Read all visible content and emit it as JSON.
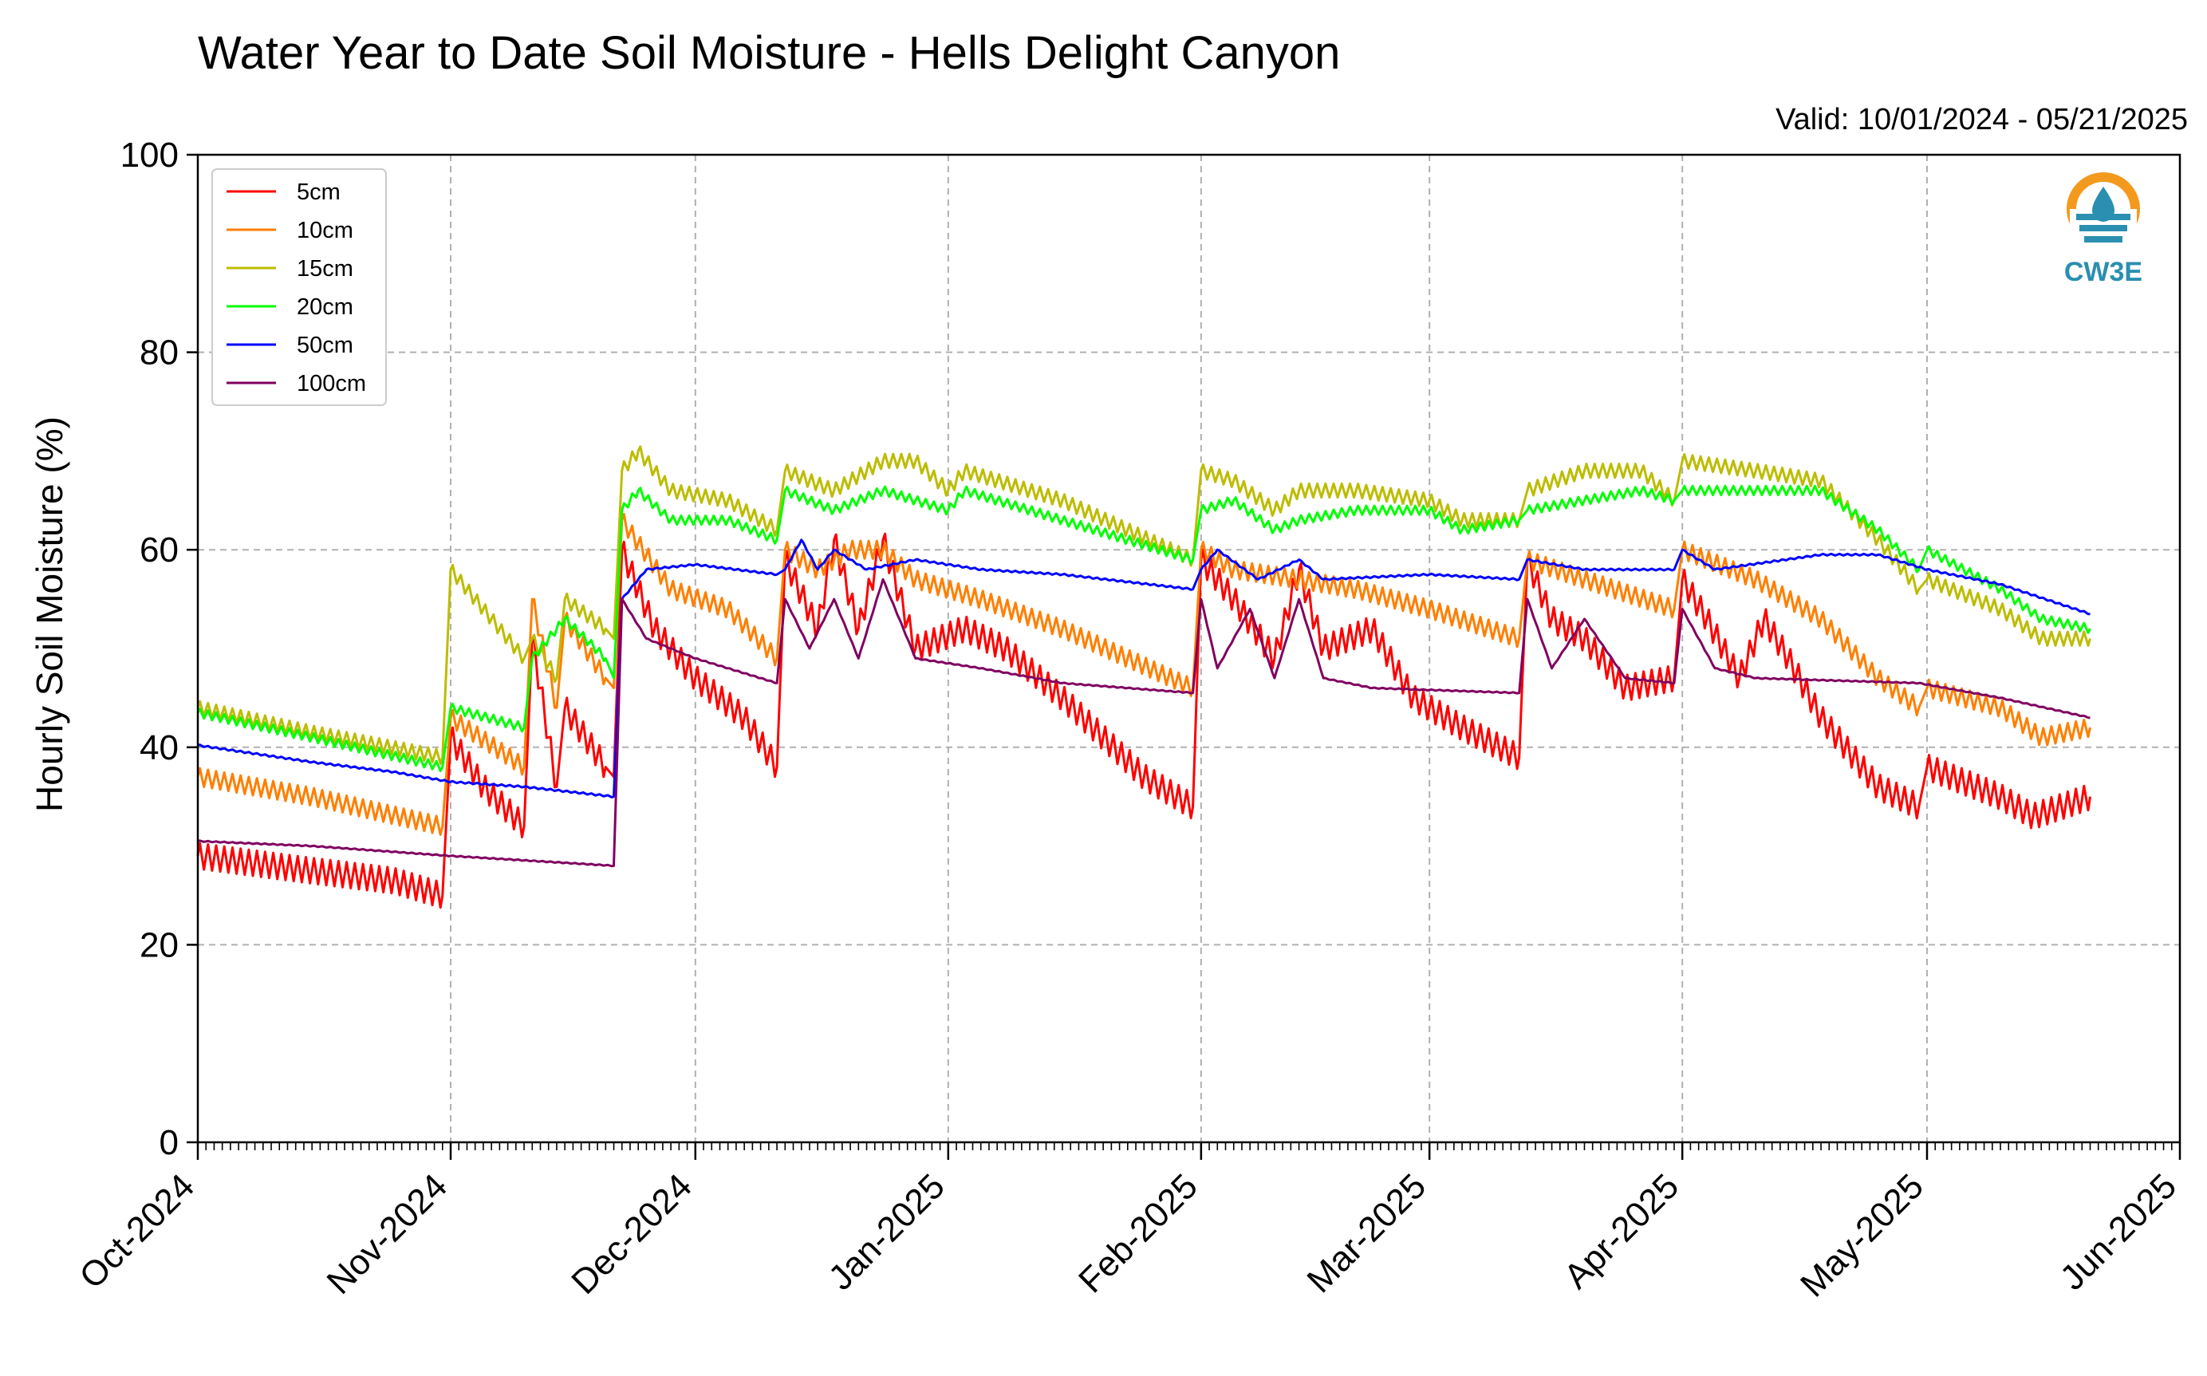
{
  "title": "Water Year to Date Soil Moisture - Hells Delight Canyon",
  "valid": "Valid: 10/01/2024 - 05/21/2025",
  "logo": {
    "text": "CW3E",
    "icon": "cw3e-drop-logo",
    "colors": {
      "sun": "#f39a1e",
      "water": "#2a8fb0"
    }
  },
  "chart_data": {
    "type": "line",
    "title": "Water Year to Date Soil Moisture - Hells Delight Canyon",
    "xlabel": "",
    "ylabel": "Hourly Soil Moisture (%)",
    "ylim": [
      0,
      100
    ],
    "yticks": [
      0,
      20,
      40,
      60,
      80,
      100
    ],
    "xlim": [
      "2024-10-01",
      "2025-06-01"
    ],
    "xticks": [
      {
        "date": "2024-10-01",
        "label": "Oct-2024"
      },
      {
        "date": "2024-11-01",
        "label": "Nov-2024"
      },
      {
        "date": "2024-12-01",
        "label": "Dec-2024"
      },
      {
        "date": "2025-01-01",
        "label": "Jan-2025"
      },
      {
        "date": "2025-02-01",
        "label": "Feb-2025"
      },
      {
        "date": "2025-03-01",
        "label": "Mar-2025"
      },
      {
        "date": "2025-04-01",
        "label": "Apr-2025"
      },
      {
        "date": "2025-05-01",
        "label": "May-2025"
      },
      {
        "date": "2025-06-01",
        "label": "Jun-2025"
      }
    ],
    "grid": true,
    "legend_position": "top-left",
    "series": [
      {
        "name": "5cm",
        "color": "#ff0000",
        "points": [
          [
            "2024-10-01",
            29
          ],
          [
            "2024-10-15",
            27.5
          ],
          [
            "2024-10-25",
            26.5
          ],
          [
            "2024-10-31",
            25
          ],
          [
            "2024-11-01",
            41
          ],
          [
            "2024-11-05",
            36
          ],
          [
            "2024-11-10",
            32
          ],
          [
            "2024-11-11",
            51
          ],
          [
            "2024-11-14",
            36
          ],
          [
            "2024-11-15",
            44
          ],
          [
            "2024-11-20",
            38
          ],
          [
            "2024-11-21",
            37
          ],
          [
            "2024-11-22",
            60
          ],
          [
            "2024-11-26",
            52
          ],
          [
            "2024-12-01",
            47
          ],
          [
            "2024-12-07",
            43
          ],
          [
            "2024-12-11",
            38
          ],
          [
            "2024-12-12",
            59
          ],
          [
            "2024-12-16",
            52
          ],
          [
            "2024-12-18",
            61
          ],
          [
            "2024-12-21",
            52
          ],
          [
            "2024-12-24",
            61
          ],
          [
            "2024-12-28",
            50
          ],
          [
            "2025-01-03",
            52
          ],
          [
            "2025-01-08",
            50
          ],
          [
            "2025-01-15",
            45
          ],
          [
            "2025-01-25",
            37
          ],
          [
            "2025-01-31",
            34
          ],
          [
            "2025-02-01",
            59
          ],
          [
            "2025-02-05",
            55
          ],
          [
            "2025-02-10",
            49
          ],
          [
            "2025-02-13",
            58
          ],
          [
            "2025-02-16",
            50
          ],
          [
            "2025-02-22",
            52
          ],
          [
            "2025-02-27",
            45
          ],
          [
            "2025-03-05",
            42
          ],
          [
            "2025-03-12",
            39
          ],
          [
            "2025-03-13",
            59
          ],
          [
            "2025-03-16",
            53
          ],
          [
            "2025-03-20",
            51
          ],
          [
            "2025-03-25",
            46
          ],
          [
            "2025-03-31",
            47
          ],
          [
            "2025-04-01",
            57
          ],
          [
            "2025-04-04",
            53
          ],
          [
            "2025-04-08",
            47
          ],
          [
            "2025-04-11",
            53
          ],
          [
            "2025-04-14",
            49
          ],
          [
            "2025-04-18",
            43
          ],
          [
            "2025-04-25",
            36
          ],
          [
            "2025-04-30",
            34
          ],
          [
            "2025-05-01",
            38
          ],
          [
            "2025-05-10",
            35
          ],
          [
            "2025-05-14",
            33
          ],
          [
            "2025-05-21",
            35
          ]
        ]
      },
      {
        "name": "10cm",
        "color": "#ff7f00",
        "points": [
          [
            "2024-10-01",
            37
          ],
          [
            "2024-10-15",
            35
          ],
          [
            "2024-10-31",
            32
          ],
          [
            "2024-11-01",
            43
          ],
          [
            "2024-11-10",
            38
          ],
          [
            "2024-11-11",
            55
          ],
          [
            "2024-11-14",
            44
          ],
          [
            "2024-11-15",
            53
          ],
          [
            "2024-11-20",
            47
          ],
          [
            "2024-11-21",
            46
          ],
          [
            "2024-11-22",
            63
          ],
          [
            "2024-11-28",
            56
          ],
          [
            "2024-12-05",
            54
          ],
          [
            "2024-12-11",
            49
          ],
          [
            "2024-12-12",
            60
          ],
          [
            "2024-12-16",
            58
          ],
          [
            "2024-12-20",
            60
          ],
          [
            "2024-12-24",
            60
          ],
          [
            "2024-12-28",
            57
          ],
          [
            "2025-01-05",
            55
          ],
          [
            "2025-01-15",
            52
          ],
          [
            "2025-01-31",
            46
          ],
          [
            "2025-02-01",
            60
          ],
          [
            "2025-02-05",
            58
          ],
          [
            "2025-02-13",
            57
          ],
          [
            "2025-02-20",
            56
          ],
          [
            "2025-03-01",
            54
          ],
          [
            "2025-03-12",
            51
          ],
          [
            "2025-03-13",
            59
          ],
          [
            "2025-03-20",
            57
          ],
          [
            "2025-03-31",
            54
          ],
          [
            "2025-04-01",
            60
          ],
          [
            "2025-04-10",
            57
          ],
          [
            "2025-04-18",
            53
          ],
          [
            "2025-04-25",
            47
          ],
          [
            "2025-04-30",
            44
          ],
          [
            "2025-05-01",
            46
          ],
          [
            "2025-05-10",
            44
          ],
          [
            "2025-05-15",
            41
          ],
          [
            "2025-05-21",
            42
          ]
        ]
      },
      {
        "name": "15cm",
        "color": "#bcbc00",
        "points": [
          [
            "2024-10-01",
            44
          ],
          [
            "2024-10-15",
            41.5
          ],
          [
            "2024-10-31",
            39
          ],
          [
            "2024-11-01",
            58
          ],
          [
            "2024-11-06",
            53
          ],
          [
            "2024-11-10",
            49
          ],
          [
            "2024-11-11",
            51
          ],
          [
            "2024-11-14",
            47
          ],
          [
            "2024-11-15",
            55
          ],
          [
            "2024-11-20",
            52
          ],
          [
            "2024-11-21",
            51
          ],
          [
            "2024-11-22",
            68
          ],
          [
            "2024-11-24",
            70
          ],
          [
            "2024-11-28",
            66
          ],
          [
            "2024-12-05",
            65
          ],
          [
            "2024-12-11",
            62
          ],
          [
            "2024-12-12",
            68
          ],
          [
            "2024-12-18",
            66
          ],
          [
            "2024-12-24",
            69
          ],
          [
            "2024-12-28",
            69
          ],
          [
            "2025-01-01",
            66
          ],
          [
            "2025-01-03",
            68
          ],
          [
            "2025-01-15",
            65
          ],
          [
            "2025-01-31",
            59
          ],
          [
            "2025-02-01",
            68
          ],
          [
            "2025-02-05",
            67
          ],
          [
            "2025-02-10",
            64
          ],
          [
            "2025-02-13",
            66
          ],
          [
            "2025-02-20",
            66
          ],
          [
            "2025-03-01",
            65
          ],
          [
            "2025-03-05",
            63
          ],
          [
            "2025-03-12",
            63
          ],
          [
            "2025-03-13",
            66
          ],
          [
            "2025-03-20",
            68
          ],
          [
            "2025-03-27",
            68
          ],
          [
            "2025-03-31",
            65
          ],
          [
            "2025-04-01",
            69
          ],
          [
            "2025-04-10",
            68
          ],
          [
            "2025-04-18",
            67
          ],
          [
            "2025-04-25",
            61
          ],
          [
            "2025-04-30",
            56
          ],
          [
            "2025-05-01",
            57
          ],
          [
            "2025-05-10",
            54
          ],
          [
            "2025-05-15",
            51
          ],
          [
            "2025-05-21",
            51
          ]
        ]
      },
      {
        "name": "20cm",
        "color": "#00ff00",
        "points": [
          [
            "2024-10-01",
            43.5
          ],
          [
            "2024-10-15",
            41
          ],
          [
            "2024-10-31",
            38
          ],
          [
            "2024-11-01",
            44
          ],
          [
            "2024-11-10",
            42
          ],
          [
            "2024-11-11",
            49
          ],
          [
            "2024-11-15",
            53
          ],
          [
            "2024-11-20",
            49
          ],
          [
            "2024-11-21",
            47
          ],
          [
            "2024-11-22",
            64
          ],
          [
            "2024-11-24",
            66
          ],
          [
            "2024-11-28",
            63
          ],
          [
            "2024-12-05",
            63
          ],
          [
            "2024-12-11",
            61
          ],
          [
            "2024-12-12",
            66
          ],
          [
            "2024-12-18",
            64
          ],
          [
            "2024-12-24",
            66
          ],
          [
            "2024-12-28",
            65
          ],
          [
            "2025-01-01",
            64
          ],
          [
            "2025-01-03",
            66
          ],
          [
            "2025-01-15",
            63
          ],
          [
            "2025-01-31",
            59
          ],
          [
            "2025-02-01",
            64
          ],
          [
            "2025-02-05",
            65
          ],
          [
            "2025-02-10",
            62
          ],
          [
            "2025-02-13",
            63
          ],
          [
            "2025-02-20",
            64
          ],
          [
            "2025-03-01",
            64
          ],
          [
            "2025-03-05",
            62
          ],
          [
            "2025-03-12",
            63
          ],
          [
            "2025-03-13",
            64
          ],
          [
            "2025-03-20",
            65
          ],
          [
            "2025-03-27",
            66
          ],
          [
            "2025-03-31",
            65
          ],
          [
            "2025-04-01",
            66
          ],
          [
            "2025-04-10",
            66
          ],
          [
            "2025-04-18",
            66
          ],
          [
            "2025-04-25",
            62
          ],
          [
            "2025-04-30",
            58
          ],
          [
            "2025-05-01",
            60
          ],
          [
            "2025-05-10",
            56
          ],
          [
            "2025-05-15",
            53
          ],
          [
            "2025-05-21",
            52
          ]
        ]
      },
      {
        "name": "50cm",
        "color": "#0000ff",
        "points": [
          [
            "2024-10-01",
            40.2
          ],
          [
            "2024-10-15",
            38.5
          ],
          [
            "2024-10-25",
            37.5
          ],
          [
            "2024-11-01",
            36.5
          ],
          [
            "2024-11-10",
            36
          ],
          [
            "2024-11-21",
            35
          ],
          [
            "2024-11-22",
            55
          ],
          [
            "2024-11-25",
            58
          ],
          [
            "2024-12-01",
            58.5
          ],
          [
            "2024-12-11",
            57.5
          ],
          [
            "2024-12-12",
            58
          ],
          [
            "2024-12-14",
            61
          ],
          [
            "2024-12-16",
            58
          ],
          [
            "2024-12-18",
            60
          ],
          [
            "2024-12-22",
            58
          ],
          [
            "2024-12-28",
            59
          ],
          [
            "2025-01-05",
            58
          ],
          [
            "2025-01-15",
            57.5
          ],
          [
            "2025-01-31",
            56
          ],
          [
            "2025-02-01",
            58
          ],
          [
            "2025-02-03",
            60
          ],
          [
            "2025-02-08",
            57
          ],
          [
            "2025-02-13",
            59
          ],
          [
            "2025-02-16",
            57
          ],
          [
            "2025-03-01",
            57.5
          ],
          [
            "2025-03-12",
            57
          ],
          [
            "2025-03-13",
            59
          ],
          [
            "2025-03-20",
            58
          ],
          [
            "2025-03-31",
            58
          ],
          [
            "2025-04-01",
            60
          ],
          [
            "2025-04-05",
            58
          ],
          [
            "2025-04-18",
            59.5
          ],
          [
            "2025-04-25",
            59.5
          ],
          [
            "2025-05-01",
            58
          ],
          [
            "2025-05-10",
            56.5
          ],
          [
            "2025-05-21",
            53.5
          ]
        ]
      },
      {
        "name": "100cm",
        "color": "#800060",
        "points": [
          [
            "2024-10-01",
            30.5
          ],
          [
            "2024-10-15",
            30
          ],
          [
            "2024-11-01",
            29
          ],
          [
            "2024-11-21",
            28
          ],
          [
            "2024-11-22",
            55
          ],
          [
            "2024-11-25",
            51
          ],
          [
            "2024-12-01",
            49
          ],
          [
            "2024-12-11",
            46.5
          ],
          [
            "2024-12-12",
            55
          ],
          [
            "2024-12-15",
            50
          ],
          [
            "2024-12-18",
            55
          ],
          [
            "2024-12-21",
            49
          ],
          [
            "2024-12-24",
            57
          ],
          [
            "2024-12-28",
            49
          ],
          [
            "2025-01-05",
            48
          ],
          [
            "2025-01-15",
            46.5
          ],
          [
            "2025-01-31",
            45.5
          ],
          [
            "2025-02-01",
            55
          ],
          [
            "2025-02-03",
            48
          ],
          [
            "2025-02-07",
            54
          ],
          [
            "2025-02-10",
            47
          ],
          [
            "2025-02-13",
            55
          ],
          [
            "2025-02-16",
            47
          ],
          [
            "2025-02-22",
            46
          ],
          [
            "2025-03-12",
            45.5
          ],
          [
            "2025-03-13",
            55
          ],
          [
            "2025-03-16",
            48
          ],
          [
            "2025-03-20",
            53
          ],
          [
            "2025-03-25",
            47
          ],
          [
            "2025-03-31",
            46.5
          ],
          [
            "2025-04-01",
            54
          ],
          [
            "2025-04-05",
            48
          ],
          [
            "2025-04-10",
            47
          ],
          [
            "2025-04-30",
            46.5
          ],
          [
            "2025-05-10",
            45
          ],
          [
            "2025-05-21",
            43
          ]
        ]
      }
    ]
  }
}
